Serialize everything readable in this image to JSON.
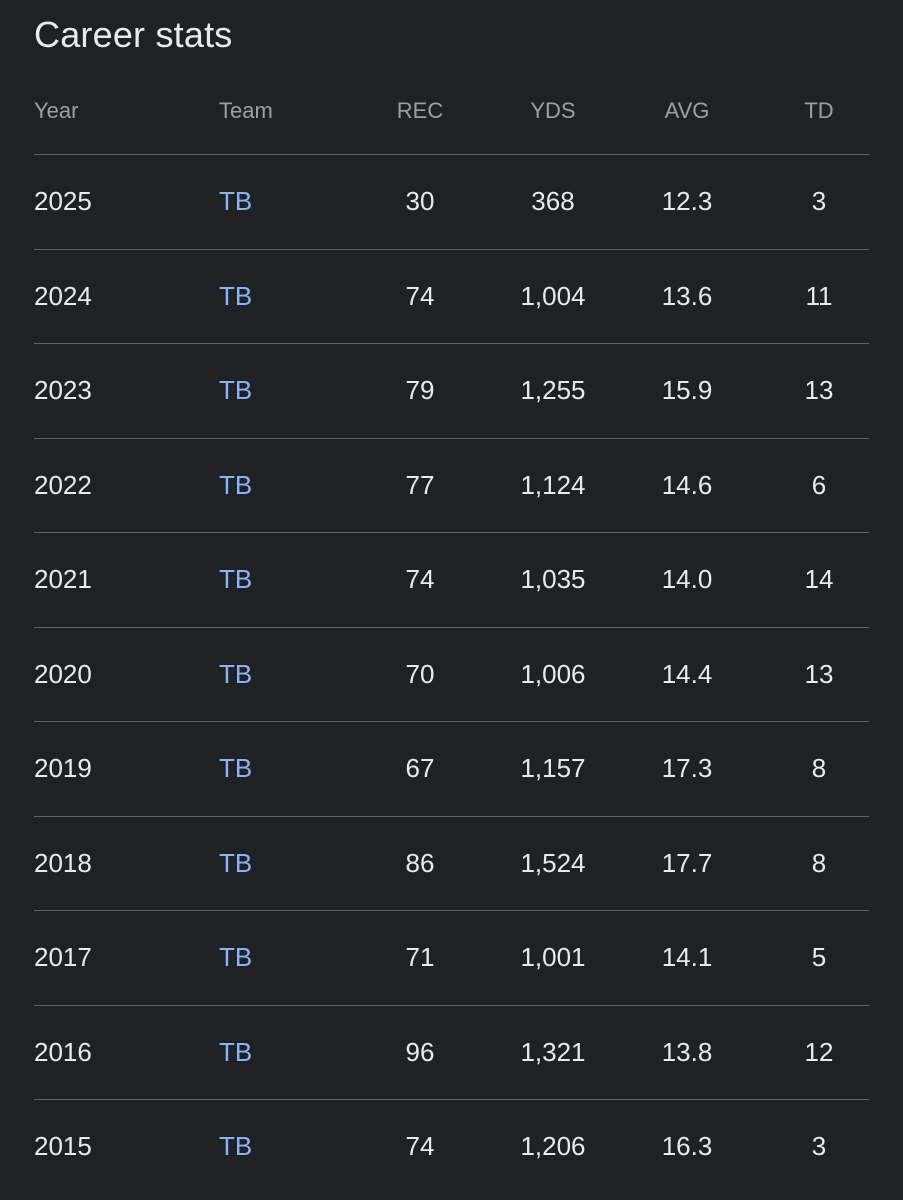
{
  "title": "Career stats",
  "columns": {
    "year": "Year",
    "team": "Team",
    "rec": "REC",
    "yds": "YDS",
    "avg": "AVG",
    "td": "TD"
  },
  "rows": [
    {
      "year": "2025",
      "team": "TB",
      "rec": "30",
      "yds": "368",
      "avg": "12.3",
      "td": "3"
    },
    {
      "year": "2024",
      "team": "TB",
      "rec": "74",
      "yds": "1,004",
      "avg": "13.6",
      "td": "11"
    },
    {
      "year": "2023",
      "team": "TB",
      "rec": "79",
      "yds": "1,255",
      "avg": "15.9",
      "td": "13"
    },
    {
      "year": "2022",
      "team": "TB",
      "rec": "77",
      "yds": "1,124",
      "avg": "14.6",
      "td": "6"
    },
    {
      "year": "2021",
      "team": "TB",
      "rec": "74",
      "yds": "1,035",
      "avg": "14.0",
      "td": "14"
    },
    {
      "year": "2020",
      "team": "TB",
      "rec": "70",
      "yds": "1,006",
      "avg": "14.4",
      "td": "13"
    },
    {
      "year": "2019",
      "team": "TB",
      "rec": "67",
      "yds": "1,157",
      "avg": "17.3",
      "td": "8"
    },
    {
      "year": "2018",
      "team": "TB",
      "rec": "86",
      "yds": "1,524",
      "avg": "17.7",
      "td": "8"
    },
    {
      "year": "2017",
      "team": "TB",
      "rec": "71",
      "yds": "1,001",
      "avg": "14.1",
      "td": "5"
    },
    {
      "year": "2016",
      "team": "TB",
      "rec": "96",
      "yds": "1,321",
      "avg": "13.8",
      "td": "12"
    },
    {
      "year": "2015",
      "team": "TB",
      "rec": "74",
      "yds": "1,206",
      "avg": "16.3",
      "td": "3"
    }
  ],
  "colors": {
    "background": "#202124",
    "text": "#e8eaed",
    "header_text": "#9aa0a6",
    "link": "#8ab4f8",
    "divider": "#5f6368"
  }
}
